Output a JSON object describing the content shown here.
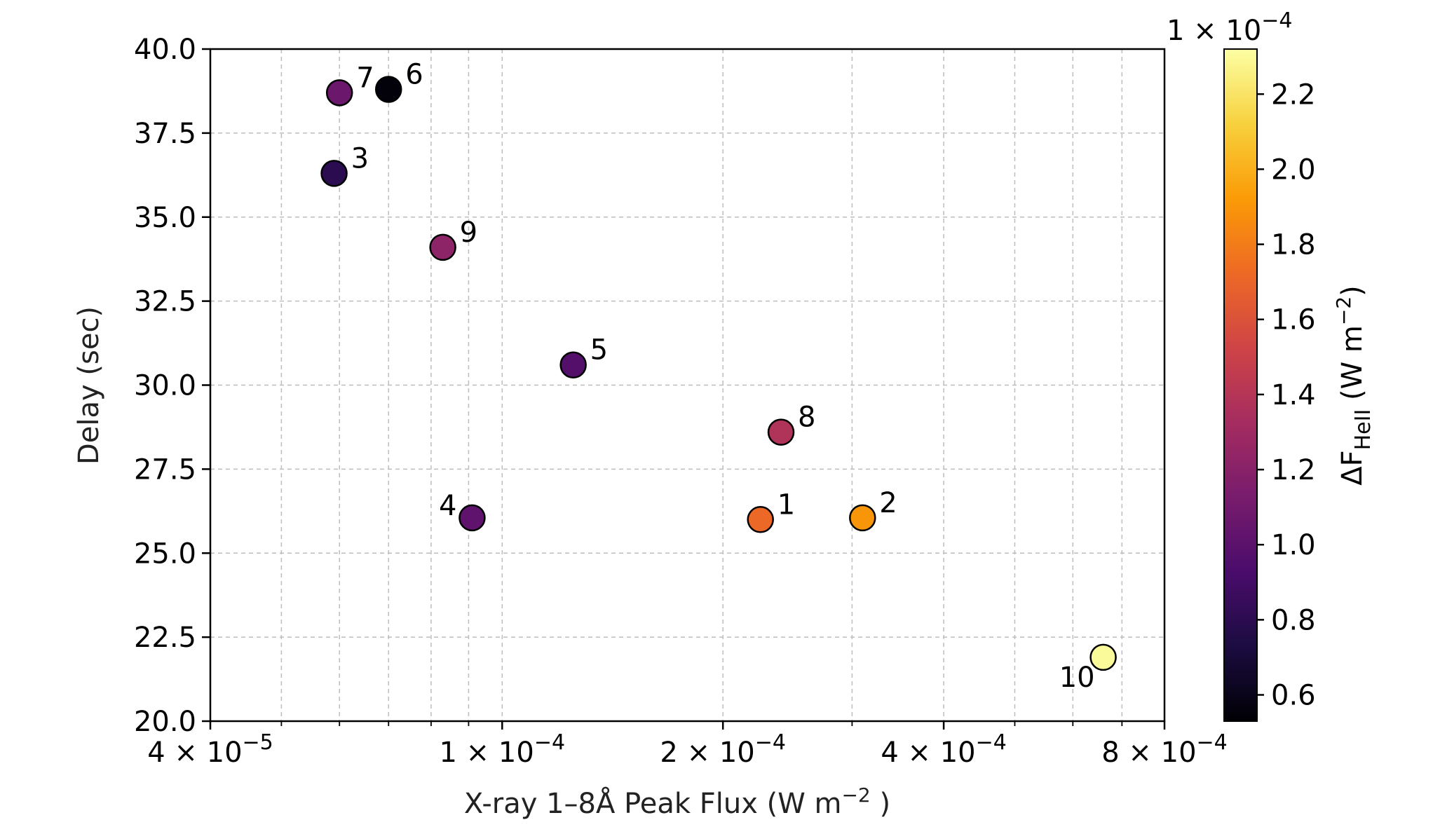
{
  "chart_data": {
    "type": "scatter",
    "title": "",
    "xlabel": "X-ray 1–8Å Peak Flux (W m",
    "xlabel_sup": "−2",
    "xlabel_end": " )",
    "ylabel": "Delay (sec)",
    "x_scale": "log",
    "xlim": [
      4e-05,
      0.0008
    ],
    "ylim": [
      20.0,
      40.0
    ],
    "grid": true,
    "x_ticks": [
      {
        "value": 4e-05,
        "mant": "4 × 10",
        "exp": "−5"
      },
      {
        "value": 0.0001,
        "mant": "1 × 10",
        "exp": "−4"
      },
      {
        "value": 0.0002,
        "mant": "2 × 10",
        "exp": "−4"
      },
      {
        "value": 0.0004,
        "mant": "4 × 10",
        "exp": "−4"
      },
      {
        "value": 0.0008,
        "mant": "8 × 10",
        "exp": "−4"
      }
    ],
    "x_minor": [
      5e-05,
      6e-05,
      7e-05,
      8e-05,
      9e-05,
      0.0003,
      0.0005,
      0.0006,
      0.0007
    ],
    "y_ticks": [
      20.0,
      22.5,
      25.0,
      27.5,
      30.0,
      32.5,
      35.0,
      37.5,
      40.0
    ],
    "y_tick_labels": [
      "20.0",
      "22.5",
      "25.0",
      "27.5",
      "30.0",
      "32.5",
      "35.0",
      "37.5",
      "40.0"
    ],
    "points": [
      {
        "label": "1",
        "x": 0.000225,
        "y": 26.0,
        "c": 1.72,
        "pos": "right"
      },
      {
        "label": "2",
        "x": 0.00031,
        "y": 26.05,
        "c": 1.9,
        "pos": "right"
      },
      {
        "label": "3",
        "x": 5.9e-05,
        "y": 36.3,
        "c": 0.8,
        "pos": "right"
      },
      {
        "label": "4",
        "x": 9.1e-05,
        "y": 26.05,
        "c": 1.02,
        "pos": "left"
      },
      {
        "label": "5",
        "x": 0.000125,
        "y": 30.6,
        "c": 0.97,
        "pos": "right"
      },
      {
        "label": "6",
        "x": 7e-05,
        "y": 38.8,
        "c": 0.55,
        "pos": "right"
      },
      {
        "label": "7",
        "x": 6e-05,
        "y": 38.7,
        "c": 1.07,
        "pos": "right"
      },
      {
        "label": "8",
        "x": 0.00024,
        "y": 28.6,
        "c": 1.38,
        "pos": "right"
      },
      {
        "label": "9",
        "x": 8.3e-05,
        "y": 34.1,
        "c": 1.22,
        "pos": "right"
      },
      {
        "label": "10",
        "x": 0.00066,
        "y": 21.9,
        "c": 2.3,
        "pos": "below-left"
      }
    ],
    "colorbar": {
      "label_prefix": "ΔF",
      "label_sub": "HeII",
      "label_units": " (W m",
      "label_sup": "−2",
      "label_end": ")",
      "multiplier_mant": "1 × 10",
      "multiplier_exp": "−4",
      "vmin": 0.53,
      "vmax": 2.32,
      "ticks": [
        0.6,
        0.8,
        1.0,
        1.2,
        1.4,
        1.6,
        1.8,
        2.0,
        2.2
      ],
      "tick_labels": [
        "0.6",
        "0.8",
        "1.0",
        "1.2",
        "1.4",
        "1.6",
        "1.8",
        "2.0",
        "2.2"
      ],
      "colormap": "inferno",
      "stops": [
        "#000004",
        "#1b0c41",
        "#4a0c6b",
        "#781c6d",
        "#a52c60",
        "#cf4446",
        "#ed6925",
        "#fb9b06",
        "#f7d13d",
        "#fcffa4"
      ]
    }
  }
}
